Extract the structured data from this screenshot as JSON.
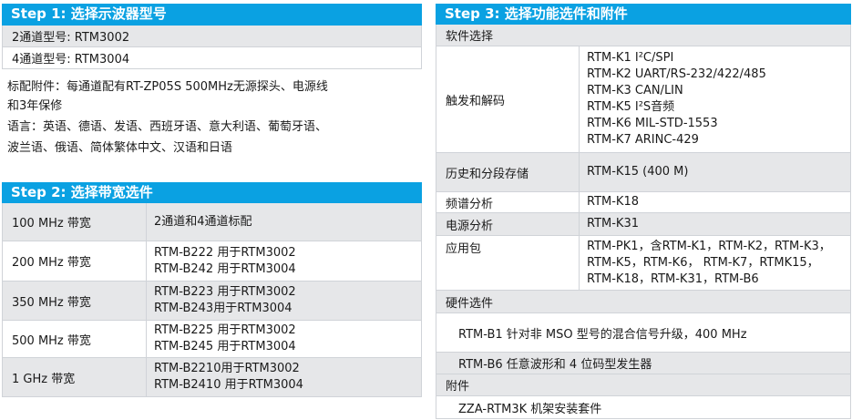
{
  "step1": {
    "title": "Step 1: 选择示波器型号",
    "models": [
      "2通道型号: RTM3002",
      "4通道型号: RTM3004"
    ],
    "notes": [
      "标配附件：每通道配有RT-ZP05S 500MHz无源探头、电源线",
      "和3年保修",
      "语言：英语、德语、发语、西班牙语、意大利语、葡萄牙语、",
      "波兰语、俄语、简体繁体中文、汉语和日语"
    ]
  },
  "step2": {
    "title": "Step 2: 选择带宽选件",
    "rows": [
      {
        "bw": "100 MHz 带宽",
        "opts": [
          "2通道和4通道标配"
        ]
      },
      {
        "bw": "200 MHz 带宽",
        "opts": [
          "RTM-B222 用于RTM3002",
          "RTM-B242 用于RTM3004"
        ]
      },
      {
        "bw": "350 MHz 带宽",
        "opts": [
          "RTM-B223 用于RTM3002",
          "RTM-B243用于RTM3004"
        ]
      },
      {
        "bw": "500 MHz 带宽",
        "opts": [
          "RTM-B225 用于RTM3002",
          "RTM-B245 用于RTM3004"
        ]
      },
      {
        "bw": "1 GHz 带宽",
        "opts": [
          "RTM-B2210用于RTM3002",
          "RTM-B2410 用于RTM3004"
        ]
      }
    ]
  },
  "step3": {
    "title": "Step 3: 选择功能选件和附件",
    "software_label": "软件选择",
    "software": [
      {
        "name": "触发和解码",
        "opts": [
          "RTM-K1 I²C/SPI",
          "RTM-K2 UART/RS-232/422/485",
          "RTM-K3 CAN/LIN",
          "RTM-K5 I²S音频",
          "RTM-K6 MIL-STD-1553",
          "RTM-K7 ARINC-429"
        ]
      },
      {
        "name": "历史和分段存储",
        "opts": [
          "RTM-K15 (400 M)"
        ]
      },
      {
        "name": "频谱分析",
        "opts": [
          "RTM-K18"
        ]
      },
      {
        "name": "电源分析",
        "opts": [
          "RTM-K31"
        ]
      },
      {
        "name": "应用包",
        "opts": [
          "RTM-PK1，含RTM-K1，RTM-K2，RTM-K3，",
          "RTM-K5，RTM-K6， RTM-K7，RTMK15，",
          "RTM-K18，RTM-K31，RTM-B6"
        ]
      }
    ],
    "hardware_label": "硬件选件",
    "hardware": [
      "RTM-B1 针对非 MSO 型号的混合信号升级，400 MHz",
      "RTM-B6 任意波形和 4 位码型发生器"
    ],
    "accessories_label": "附件",
    "accessories": [
      "ZZA-RTM3K 机架安装套件"
    ]
  },
  "colors": {
    "header": "#0aa1e2",
    "row_gray": "#e6e7e9"
  }
}
